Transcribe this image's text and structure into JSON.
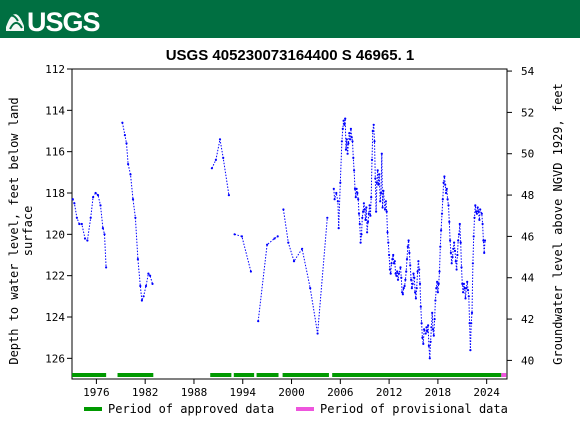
{
  "header": {
    "logo_text": "USGS",
    "brand_color": "#006f41"
  },
  "chart_data": {
    "type": "scatter",
    "title": "USGS 405230073164400 S 46965. 1",
    "ylabel_left_lines": [
      "Depth to water level, feet below land",
      "surface"
    ],
    "ylabel_right": "Groundwater level above NGVD 1929, feet",
    "xlim": [
      1973.0,
      2026.5
    ],
    "ylim_left": [
      127.0,
      112.0
    ],
    "ylim_right": [
      39.1,
      54.1
    ],
    "x_ticks": [
      1976,
      1982,
      1988,
      1994,
      2000,
      2006,
      2012,
      2018,
      2024
    ],
    "y_ticks_left": [
      112,
      114,
      116,
      118,
      120,
      122,
      124,
      126
    ],
    "y_ticks_right": [
      40,
      42,
      44,
      46,
      48,
      50,
      52,
      54
    ],
    "series_color": "#0000ff",
    "series_segments": [
      [
        [
          1973.1,
          118.3
        ],
        [
          1973.3,
          118.5
        ],
        [
          1973.6,
          119.2
        ],
        [
          1973.9,
          119.5
        ],
        [
          1974.2,
          119.5
        ],
        [
          1974.6,
          120.2
        ],
        [
          1974.9,
          120.3
        ],
        [
          1975.3,
          119.2
        ],
        [
          1975.6,
          118.2
        ],
        [
          1975.9,
          118.0
        ],
        [
          1976.2,
          118.1
        ],
        [
          1976.5,
          118.6
        ],
        [
          1976.8,
          119.7
        ],
        [
          1977.0,
          120.0
        ],
        [
          1977.2,
          121.6
        ]
      ],
      [
        [
          1979.2,
          114.6
        ],
        [
          1979.5,
          115.2
        ],
        [
          1979.7,
          115.6
        ],
        [
          1979.9,
          116.6
        ],
        [
          1980.2,
          117.1
        ],
        [
          1980.5,
          118.3
        ],
        [
          1980.8,
          119.2
        ],
        [
          1981.1,
          121.2
        ],
        [
          1981.4,
          122.5
        ],
        [
          1981.6,
          123.2
        ],
        [
          1981.8,
          123.0
        ],
        [
          1982.1,
          122.5
        ],
        [
          1982.4,
          121.9
        ],
        [
          1982.6,
          122.0
        ],
        [
          1982.9,
          122.4
        ]
      ],
      [
        [
          1990.2,
          116.8
        ],
        [
          1990.7,
          116.4
        ],
        [
          1991.2,
          115.4
        ],
        [
          1991.6,
          116.3
        ],
        [
          1992.3,
          118.1
        ]
      ],
      [
        [
          1993.0,
          120.0
        ],
        [
          1993.9,
          120.1
        ],
        [
          1995.0,
          121.8
        ]
      ],
      [
        [
          1995.9,
          124.2
        ],
        [
          1997.0,
          120.5
        ],
        [
          1997.9,
          120.2
        ],
        [
          1998.3,
          120.1
        ]
      ],
      [
        [
          1999.0,
          118.8
        ],
        [
          1999.6,
          120.4
        ],
        [
          2000.3,
          121.3
        ],
        [
          2001.3,
          120.7
        ],
        [
          2002.3,
          122.6
        ],
        [
          2003.2,
          124.8
        ],
        [
          2004.4,
          119.2
        ]
      ],
      [
        [
          2005.2,
          117.8
        ],
        [
          2005.3,
          118.3
        ],
        [
          2005.5,
          118.0
        ],
        [
          2005.7,
          118.4
        ],
        [
          2005.8,
          119.7
        ],
        [
          2006.0,
          117.5
        ],
        [
          2006.2,
          115.5
        ],
        [
          2006.3,
          114.9
        ],
        [
          2006.4,
          114.5
        ],
        [
          2006.5,
          114.7
        ],
        [
          2006.6,
          114.4
        ],
        [
          2006.7,
          115.9
        ],
        [
          2006.8,
          115.4
        ],
        [
          2006.9,
          116.1
        ],
        [
          2007.0,
          115.6
        ],
        [
          2007.1,
          115.1
        ],
        [
          2007.2,
          115.4
        ],
        [
          2007.3,
          114.9
        ],
        [
          2007.4,
          115.3
        ],
        [
          2007.5,
          115.5
        ],
        [
          2007.6,
          116.3
        ],
        [
          2007.7,
          116.9
        ],
        [
          2007.8,
          117.8
        ],
        [
          2007.9,
          118.2
        ],
        [
          2008.0,
          117.8
        ],
        [
          2008.1,
          118.0
        ],
        [
          2008.2,
          118.3
        ],
        [
          2008.3,
          119.0
        ],
        [
          2008.4,
          119.5
        ],
        [
          2008.5,
          120.4
        ],
        [
          2008.6,
          120.0
        ],
        [
          2008.7,
          119.2
        ],
        [
          2008.8,
          118.9
        ],
        [
          2008.9,
          118.5
        ],
        [
          2009.0,
          118.8
        ],
        [
          2009.1,
          119.3
        ],
        [
          2009.2,
          118.7
        ],
        [
          2009.3,
          119.9
        ],
        [
          2009.4,
          119.4
        ],
        [
          2009.5,
          119.0
        ],
        [
          2009.6,
          118.6
        ],
        [
          2009.7,
          119.1
        ],
        [
          2009.8,
          118.2
        ],
        [
          2009.9,
          116.4
        ],
        [
          2010.0,
          115.0
        ],
        [
          2010.1,
          114.7
        ],
        [
          2010.2,
          115.5
        ],
        [
          2010.3,
          117.3
        ],
        [
          2010.4,
          118.9
        ],
        [
          2010.5,
          117.5
        ],
        [
          2010.6,
          116.9
        ],
        [
          2010.7,
          117.6
        ],
        [
          2010.8,
          117.1
        ],
        [
          2010.9,
          118.4
        ],
        [
          2011.0,
          118.0
        ],
        [
          2011.1,
          116.1
        ],
        [
          2011.2,
          118.7
        ],
        [
          2011.3,
          117.9
        ],
        [
          2011.5,
          118.8
        ],
        [
          2011.6,
          118.4
        ],
        [
          2011.7,
          118.9
        ],
        [
          2011.8,
          119.9
        ],
        [
          2011.9,
          120.4
        ],
        [
          2012.0,
          121.0
        ],
        [
          2012.1,
          121.7
        ],
        [
          2012.2,
          121.9
        ],
        [
          2012.3,
          121.4
        ],
        [
          2012.4,
          121.2
        ],
        [
          2012.5,
          121.0
        ],
        [
          2012.6,
          121.4
        ],
        [
          2012.7,
          121.3
        ],
        [
          2012.8,
          121.9
        ],
        [
          2012.9,
          122.0
        ],
        [
          2013.0,
          121.8
        ],
        [
          2013.1,
          122.2
        ],
        [
          2013.2,
          121.9
        ],
        [
          2013.4,
          121.6
        ],
        [
          2013.5,
          122.1
        ],
        [
          2013.6,
          122.8
        ],
        [
          2013.7,
          122.9
        ],
        [
          2013.8,
          122.6
        ],
        [
          2013.9,
          122.5
        ],
        [
          2014.0,
          122.2
        ],
        [
          2014.1,
          121.8
        ],
        [
          2014.2,
          121.2
        ],
        [
          2014.3,
          120.6
        ],
        [
          2014.4,
          120.3
        ],
        [
          2014.5,
          120.9
        ],
        [
          2014.6,
          121.5
        ],
        [
          2014.7,
          122.2
        ],
        [
          2014.8,
          122.6
        ],
        [
          2014.9,
          122.4
        ],
        [
          2015.0,
          121.9
        ],
        [
          2015.1,
          122.1
        ],
        [
          2015.2,
          122.8
        ],
        [
          2015.3,
          123.1
        ],
        [
          2015.4,
          122.6
        ],
        [
          2015.5,
          121.8
        ],
        [
          2015.6,
          121.3
        ],
        [
          2015.7,
          121.7
        ],
        [
          2015.8,
          122.4
        ],
        [
          2015.9,
          123.5
        ],
        [
          2016.0,
          124.3
        ],
        [
          2016.1,
          125.0
        ],
        [
          2016.2,
          125.3
        ],
        [
          2016.3,
          124.6
        ],
        [
          2016.5,
          124.8
        ],
        [
          2016.6,
          124.5
        ],
        [
          2016.7,
          124.7
        ],
        [
          2016.8,
          124.4
        ],
        [
          2016.9,
          125.4
        ],
        [
          2017.0,
          126.0
        ],
        [
          2017.1,
          125.2
        ],
        [
          2017.2,
          124.5
        ],
        [
          2017.3,
          123.8
        ],
        [
          2017.4,
          124.6
        ],
        [
          2017.5,
          124.9
        ],
        [
          2017.6,
          124.1
        ],
        [
          2017.7,
          123.2
        ],
        [
          2017.8,
          122.6
        ],
        [
          2017.9,
          122.3
        ],
        [
          2018.0,
          122.8
        ],
        [
          2018.1,
          122.4
        ],
        [
          2018.2,
          121.8
        ],
        [
          2018.3,
          120.6
        ],
        [
          2018.4,
          119.8
        ],
        [
          2018.5,
          119.0
        ],
        [
          2018.6,
          118.3
        ],
        [
          2018.7,
          117.5
        ],
        [
          2018.8,
          117.2
        ],
        [
          2018.9,
          117.6
        ],
        [
          2019.0,
          118.0
        ],
        [
          2019.1,
          117.8
        ],
        [
          2019.2,
          118.3
        ],
        [
          2019.3,
          118.6
        ],
        [
          2019.4,
          119.4
        ],
        [
          2019.5,
          120.3
        ],
        [
          2019.6,
          120.9
        ],
        [
          2019.7,
          121.4
        ],
        [
          2019.8,
          121.1
        ],
        [
          2019.9,
          120.7
        ],
        [
          2020.0,
          120.4
        ],
        [
          2020.1,
          120.8
        ],
        [
          2020.2,
          121.3
        ],
        [
          2020.3,
          121.7
        ],
        [
          2020.4,
          121.0
        ],
        [
          2020.5,
          120.3
        ],
        [
          2020.6,
          120.0
        ],
        [
          2020.7,
          119.5
        ],
        [
          2020.8,
          120.4
        ],
        [
          2020.9,
          121.6
        ],
        [
          2021.0,
          122.4
        ],
        [
          2021.1,
          122.8
        ],
        [
          2021.2,
          122.4
        ],
        [
          2021.3,
          122.6
        ],
        [
          2021.4,
          123.1
        ],
        [
          2021.5,
          122.6
        ],
        [
          2021.6,
          122.3
        ],
        [
          2021.7,
          122.7
        ],
        [
          2021.8,
          123.0
        ],
        [
          2021.9,
          124.3
        ],
        [
          2022.0,
          125.6
        ],
        [
          2022.1,
          124.3
        ],
        [
          2022.2,
          123.8
        ],
        [
          2022.3,
          121.4
        ],
        [
          2022.4,
          120.1
        ],
        [
          2022.5,
          119.2
        ],
        [
          2022.6,
          118.6
        ],
        [
          2022.7,
          118.9
        ],
        [
          2022.8,
          119.0
        ],
        [
          2022.9,
          118.7
        ],
        [
          2023.0,
          118.9
        ],
        [
          2023.1,
          119.3
        ],
        [
          2023.2,
          118.8
        ],
        [
          2023.4,
          119.0
        ],
        [
          2023.5,
          119.5
        ],
        [
          2023.6,
          120.3
        ],
        [
          2023.7,
          120.9
        ],
        [
          2023.8,
          120.3
        ]
      ]
    ],
    "periods": [
      {
        "start": 1973.0,
        "end": 1977.2,
        "status": "approved"
      },
      {
        "start": 1978.6,
        "end": 1983.0,
        "status": "approved"
      },
      {
        "start": 1990.0,
        "end": 1992.6,
        "status": "approved"
      },
      {
        "start": 1992.9,
        "end": 1995.4,
        "status": "approved"
      },
      {
        "start": 1995.7,
        "end": 1998.4,
        "status": "approved"
      },
      {
        "start": 1998.9,
        "end": 2004.6,
        "status": "approved"
      },
      {
        "start": 2005.0,
        "end": 2025.8,
        "status": "approved"
      },
      {
        "start": 2025.8,
        "end": 2026.4,
        "status": "provisional"
      }
    ],
    "legend": {
      "approved_label": "Period of approved data",
      "provisional_label": "Period of provisional data",
      "approved_color": "#009900",
      "provisional_color": "#ee55dd"
    }
  }
}
